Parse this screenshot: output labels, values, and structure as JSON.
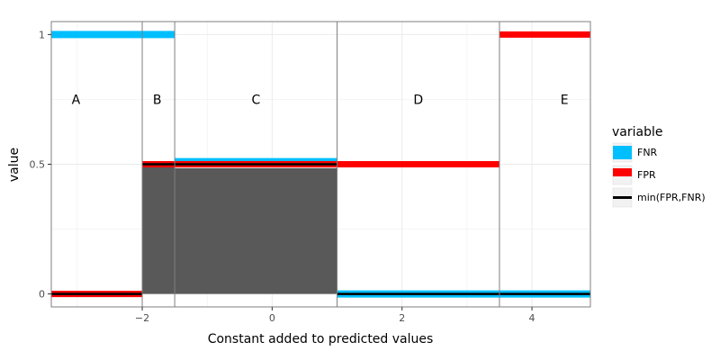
{
  "colors": {
    "fnr": "#00BFFF",
    "fpr": "#FF0000",
    "min": "#000000",
    "area": "#595959",
    "divider": "#7f7f7f",
    "grid": "#ebebeb",
    "panel_border": "#7f7f7f"
  },
  "chart_data": {
    "type": "line",
    "xlabel": "Constant added to predicted values",
    "ylabel": "value",
    "xlim": [
      -3.4,
      4.9
    ],
    "ylim": [
      -0.05,
      1.05
    ],
    "x_ticks": [
      -2,
      0,
      2,
      4
    ],
    "x_tick_labels": [
      "−2",
      "0",
      "2",
      "4"
    ],
    "y_ticks": [
      0,
      0.5,
      1
    ],
    "y_tick_labels": [
      "0",
      "0.5",
      "1"
    ],
    "grid": true,
    "legend_position": "right",
    "legend_title": "variable",
    "dividers": [
      -2,
      -1.5,
      1,
      3.5
    ],
    "regions": [
      {
        "label": "A",
        "x": -3.02,
        "y": 0.75
      },
      {
        "label": "B",
        "x": -1.77,
        "y": 0.75
      },
      {
        "label": "C",
        "x": -0.25,
        "y": 0.75
      },
      {
        "label": "D",
        "x": 2.25,
        "y": 0.75
      },
      {
        "label": "E",
        "x": 4.5,
        "y": 0.75
      }
    ],
    "shaded_area": [
      {
        "x0": -2,
        "x1": -1.5,
        "y": 0.5
      },
      {
        "x0": -1.5,
        "x1": 1,
        "y": 0.485
      }
    ],
    "series": [
      {
        "name": "FNR",
        "color": "#00BFFF",
        "segments": [
          {
            "x0": -3.4,
            "x1": -1.5,
            "y": 1.0
          },
          {
            "x0": -1.5,
            "x1": 1,
            "y": 0.51
          },
          {
            "x0": 1,
            "x1": 4.9,
            "y": 0.0
          }
        ]
      },
      {
        "name": "FPR",
        "color": "#FF0000",
        "segments": [
          {
            "x0": -3.4,
            "x1": -2,
            "y": 0.0
          },
          {
            "x0": -2,
            "x1": 3.5,
            "y": 0.5
          },
          {
            "x0": 3.5,
            "x1": 4.9,
            "y": 1.0
          }
        ]
      },
      {
        "name": "min(FPR,FNR)",
        "color": "#000000",
        "segments": [
          {
            "x0": -3.4,
            "x1": -2,
            "y": 0.0
          },
          {
            "x0": -2,
            "x1": 1,
            "y": 0.5
          },
          {
            "x0": 1,
            "x1": 4.9,
            "y": 0.0
          }
        ]
      }
    ]
  }
}
